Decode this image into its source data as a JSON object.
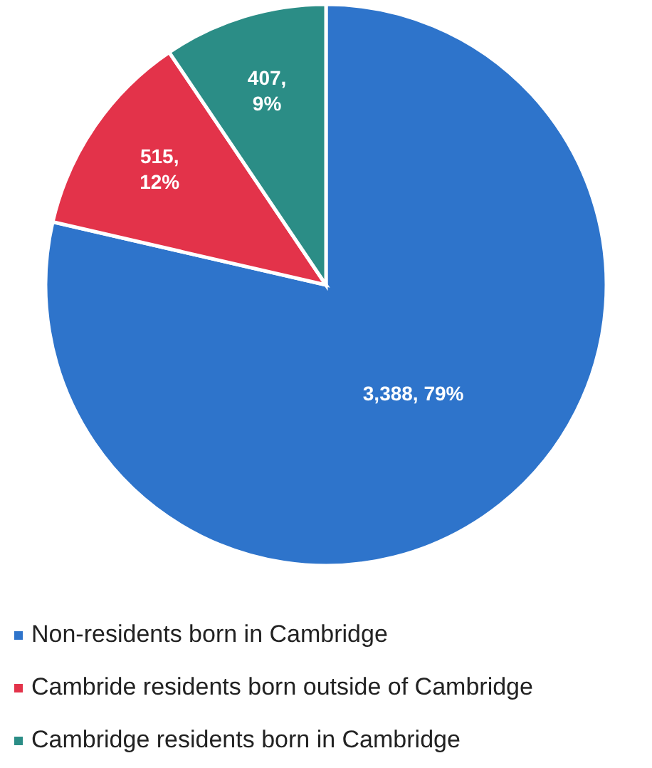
{
  "chart_data": {
    "type": "pie",
    "categories": [
      "Non-residents born in Cambridge",
      "Cambride residents born outside of Cambridge",
      "Cambridge residents born in Cambridge"
    ],
    "values": [
      3388,
      515,
      407
    ],
    "colors": [
      "#2e74cb",
      "#e3334a",
      "#2b8d86"
    ],
    "value_labels": [
      "3,388, 79%",
      "515, 12%",
      "407, 9%"
    ],
    "legend": "bottom"
  }
}
